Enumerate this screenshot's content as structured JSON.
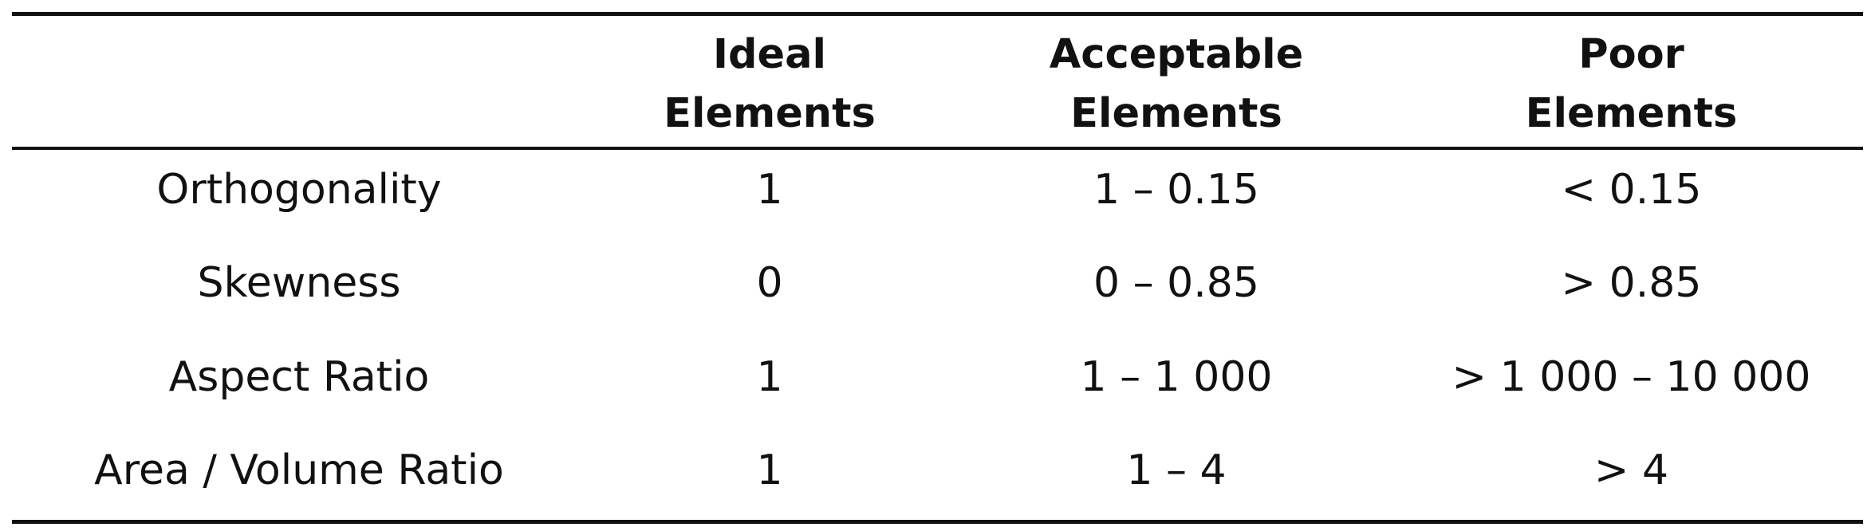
{
  "table": {
    "headers": [
      {
        "line1": "",
        "line2": ""
      },
      {
        "line1": "Ideal",
        "line2": "Elements"
      },
      {
        "line1": "Acceptable",
        "line2": "Elements"
      },
      {
        "line1": "Poor",
        "line2": "Elements"
      }
    ],
    "rows": [
      [
        "Orthogonality",
        "1",
        "1 – 0.15",
        "< 0.15"
      ],
      [
        "Skewness",
        "0",
        "0 – 0.85",
        "> 0.85"
      ],
      [
        "Aspect Ratio",
        "1",
        "1 – 1 000",
        "> 1 000 – 10 000"
      ],
      [
        "Area / Volume Ratio",
        "1",
        "1 – 4",
        "> 4"
      ]
    ]
  }
}
